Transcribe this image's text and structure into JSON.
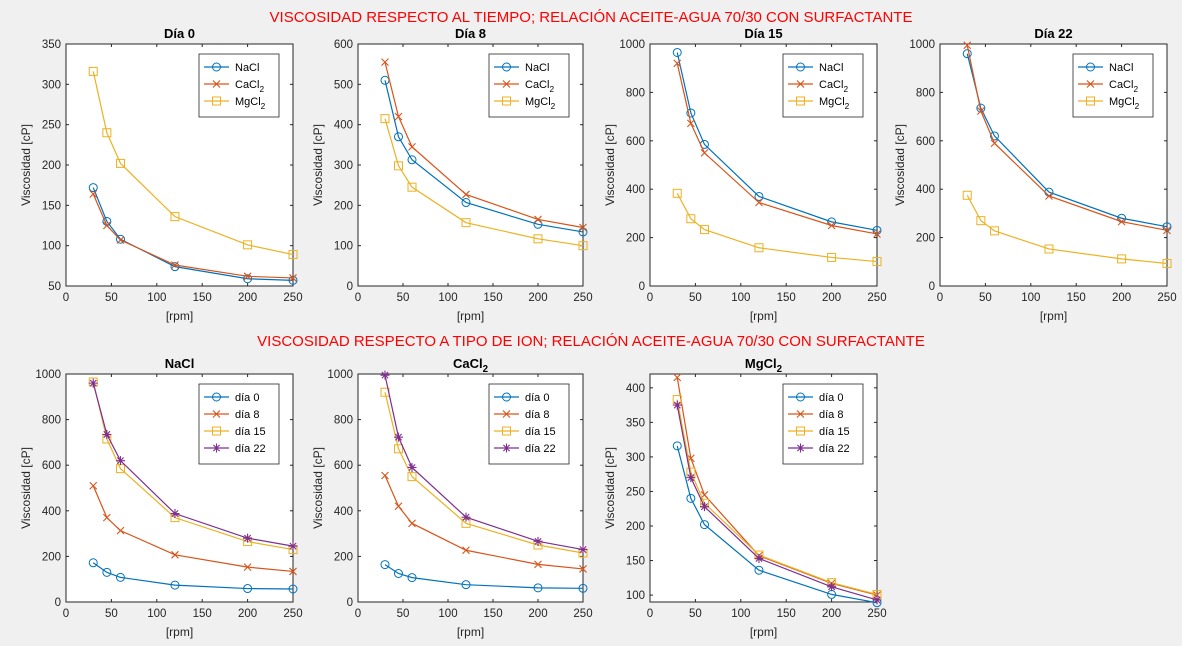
{
  "figure": {
    "title_top": "VISCOSIDAD RESPECTO AL TIEMPO; RELACIÓN ACEITE-AGUA 70/30 CON SURFACTANTE",
    "title_bottom": "VISCOSIDAD RESPECTO A TIPO DE ION; RELACIÓN ACEITE-AGUA 70/30 CON SURFACTANTE"
  },
  "colors": {
    "blue": "#0072bd",
    "orange": "#d95319",
    "yellow": "#edb120",
    "purple": "#7e2f8e"
  },
  "chart_data": [
    {
      "type": "line",
      "title": "Día 0",
      "xlabel": "[rpm]",
      "ylabel": "Viscosidad [cP]",
      "xlim": [
        0,
        250
      ],
      "ylim": [
        50,
        350
      ],
      "xticks": [
        0,
        50,
        100,
        150,
        200,
        250
      ],
      "yticks": [
        50,
        100,
        150,
        200,
        250,
        300,
        350
      ],
      "grid": false,
      "legend": "top-right",
      "x": [
        30,
        45,
        60,
        120,
        200,
        250
      ],
      "series": [
        {
          "name": "NaCl",
          "base": "NaCl",
          "sub": "",
          "marker": "circle",
          "color": "blue",
          "values": [
            172,
            130,
            108,
            74,
            59,
            57
          ]
        },
        {
          "name": "CaCl2",
          "base": "CaCl",
          "sub": "2",
          "marker": "x",
          "color": "orange",
          "values": [
            164,
            125,
            107,
            76,
            62,
            60
          ]
        },
        {
          "name": "MgCl2",
          "base": "MgCl",
          "sub": "2",
          "marker": "square",
          "color": "yellow",
          "values": [
            316,
            240,
            202,
            136,
            101,
            89
          ]
        }
      ]
    },
    {
      "type": "line",
      "title": "Día 8",
      "xlabel": "[rpm]",
      "ylabel": "Viscosidad [cP]",
      "xlim": [
        0,
        250
      ],
      "ylim": [
        0,
        600
      ],
      "xticks": [
        0,
        50,
        100,
        150,
        200,
        250
      ],
      "yticks": [
        0,
        100,
        200,
        300,
        400,
        500,
        600
      ],
      "grid": false,
      "legend": "top-right",
      "x": [
        30,
        45,
        60,
        120,
        200,
        250
      ],
      "series": [
        {
          "name": "NaCl",
          "base": "NaCl",
          "sub": "",
          "marker": "circle",
          "color": "blue",
          "values": [
            510,
            370,
            313,
            207,
            153,
            134
          ]
        },
        {
          "name": "CaCl2",
          "base": "CaCl",
          "sub": "2",
          "marker": "x",
          "color": "orange",
          "values": [
            555,
            420,
            345,
            227,
            165,
            145
          ]
        },
        {
          "name": "MgCl2",
          "base": "MgCl",
          "sub": "2",
          "marker": "square",
          "color": "yellow",
          "values": [
            415,
            298,
            245,
            157,
            117,
            100
          ]
        }
      ]
    },
    {
      "type": "line",
      "title": "Día 15",
      "xlabel": "[rpm]",
      "ylabel": "Viscosidad [cP]",
      "xlim": [
        0,
        250
      ],
      "ylim": [
        0,
        1000
      ],
      "xticks": [
        0,
        50,
        100,
        150,
        200,
        250
      ],
      "yticks": [
        0,
        200,
        400,
        600,
        800,
        1000
      ],
      "grid": false,
      "legend": "top-right",
      "x": [
        30,
        45,
        60,
        120,
        200,
        250
      ],
      "series": [
        {
          "name": "NaCl",
          "base": "NaCl",
          "sub": "",
          "marker": "circle",
          "color": "blue",
          "values": [
            965,
            715,
            585,
            370,
            265,
            230
          ]
        },
        {
          "name": "CaCl2",
          "base": "CaCl",
          "sub": "2",
          "marker": "x",
          "color": "orange",
          "values": [
            920,
            672,
            550,
            345,
            250,
            215
          ]
        },
        {
          "name": "MgCl2",
          "base": "MgCl",
          "sub": "2",
          "marker": "square",
          "color": "yellow",
          "values": [
            383,
            278,
            233,
            158,
            118,
            101
          ]
        }
      ]
    },
    {
      "type": "line",
      "title": "Día 22",
      "xlabel": "[rpm]",
      "ylabel": "Viscosidad [cP]",
      "xlim": [
        0,
        250
      ],
      "ylim": [
        0,
        1000
      ],
      "xticks": [
        0,
        50,
        100,
        150,
        200,
        250
      ],
      "yticks": [
        0,
        200,
        400,
        600,
        800,
        1000
      ],
      "grid": false,
      "legend": "top-right",
      "x": [
        30,
        45,
        60,
        120,
        200,
        250
      ],
      "series": [
        {
          "name": "NaCl",
          "base": "NaCl",
          "sub": "",
          "marker": "circle",
          "color": "blue",
          "values": [
            960,
            735,
            620,
            388,
            280,
            245
          ]
        },
        {
          "name": "CaCl2",
          "base": "CaCl",
          "sub": "2",
          "marker": "x",
          "color": "orange",
          "values": [
            995,
            723,
            590,
            372,
            266,
            230
          ]
        },
        {
          "name": "MgCl2",
          "base": "MgCl",
          "sub": "2",
          "marker": "square",
          "color": "yellow",
          "values": [
            375,
            270,
            228,
            153,
            112,
            93
          ]
        }
      ]
    },
    {
      "type": "line",
      "title": "NaCl",
      "title_base": "NaCl",
      "title_sub": "",
      "xlabel": "[rpm]",
      "ylabel": "Viscosidad [cP]",
      "xlim": [
        0,
        250
      ],
      "ylim": [
        0,
        1000
      ],
      "xticks": [
        0,
        50,
        100,
        150,
        200,
        250
      ],
      "yticks": [
        0,
        200,
        400,
        600,
        800,
        1000
      ],
      "grid": false,
      "legend": "top-right",
      "x": [
        30,
        45,
        60,
        120,
        200,
        250
      ],
      "series": [
        {
          "name": "día 0",
          "base": "día 0",
          "sub": "",
          "marker": "circle",
          "color": "blue",
          "values": [
            172,
            130,
            108,
            74,
            59,
            57
          ]
        },
        {
          "name": "día 8",
          "base": "día 8",
          "sub": "",
          "marker": "x",
          "color": "orange",
          "values": [
            510,
            370,
            313,
            207,
            153,
            134
          ]
        },
        {
          "name": "día 15",
          "base": "día 15",
          "sub": "",
          "marker": "square",
          "color": "yellow",
          "values": [
            965,
            715,
            585,
            370,
            265,
            230
          ]
        },
        {
          "name": "día 22",
          "base": "día 22",
          "sub": "",
          "marker": "star",
          "color": "purple",
          "values": [
            960,
            735,
            620,
            388,
            280,
            245
          ]
        }
      ]
    },
    {
      "type": "line",
      "title": "CaCl2",
      "title_base": "CaCl",
      "title_sub": "2",
      "xlabel": "[rpm]",
      "ylabel": "Viscosidad [cP]",
      "xlim": [
        0,
        250
      ],
      "ylim": [
        0,
        1000
      ],
      "xticks": [
        0,
        50,
        100,
        150,
        200,
        250
      ],
      "yticks": [
        0,
        200,
        400,
        600,
        800,
        1000
      ],
      "grid": false,
      "legend": "top-right",
      "x": [
        30,
        45,
        60,
        120,
        200,
        250
      ],
      "series": [
        {
          "name": "día 0",
          "base": "día 0",
          "sub": "",
          "marker": "circle",
          "color": "blue",
          "values": [
            164,
            125,
            107,
            76,
            62,
            60
          ]
        },
        {
          "name": "día 8",
          "base": "día 8",
          "sub": "",
          "marker": "x",
          "color": "orange",
          "values": [
            555,
            420,
            345,
            227,
            165,
            145
          ]
        },
        {
          "name": "día 15",
          "base": "día 15",
          "sub": "",
          "marker": "square",
          "color": "yellow",
          "values": [
            920,
            672,
            550,
            345,
            250,
            215
          ]
        },
        {
          "name": "día 22",
          "base": "día 22",
          "sub": "",
          "marker": "star",
          "color": "purple",
          "values": [
            995,
            723,
            590,
            372,
            266,
            230
          ]
        }
      ]
    },
    {
      "type": "line",
      "title": "MgCl2",
      "title_base": "MgCl",
      "title_sub": "2",
      "xlabel": "[rpm]",
      "ylabel": "Viscosidad [cP]",
      "xlim": [
        0,
        250
      ],
      "ylim": [
        90,
        420
      ],
      "xticks": [
        0,
        50,
        100,
        150,
        200,
        250
      ],
      "yticks": [
        100,
        150,
        200,
        250,
        300,
        350,
        400
      ],
      "grid": false,
      "legend": "top-right",
      "x": [
        30,
        45,
        60,
        120,
        200,
        250
      ],
      "series": [
        {
          "name": "día 0",
          "base": "día 0",
          "sub": "",
          "marker": "circle",
          "color": "blue",
          "values": [
            316,
            240,
            202,
            136,
            101,
            89
          ]
        },
        {
          "name": "día 8",
          "base": "día 8",
          "sub": "",
          "marker": "x",
          "color": "orange",
          "values": [
            415,
            298,
            245,
            157,
            117,
            100
          ]
        },
        {
          "name": "día 15",
          "base": "día 15",
          "sub": "",
          "marker": "square",
          "color": "yellow",
          "values": [
            383,
            278,
            233,
            158,
            118,
            101
          ]
        },
        {
          "name": "día 22",
          "base": "día 22",
          "sub": "",
          "marker": "star",
          "color": "purple",
          "values": [
            375,
            270,
            228,
            153,
            112,
            93
          ]
        }
      ]
    }
  ]
}
